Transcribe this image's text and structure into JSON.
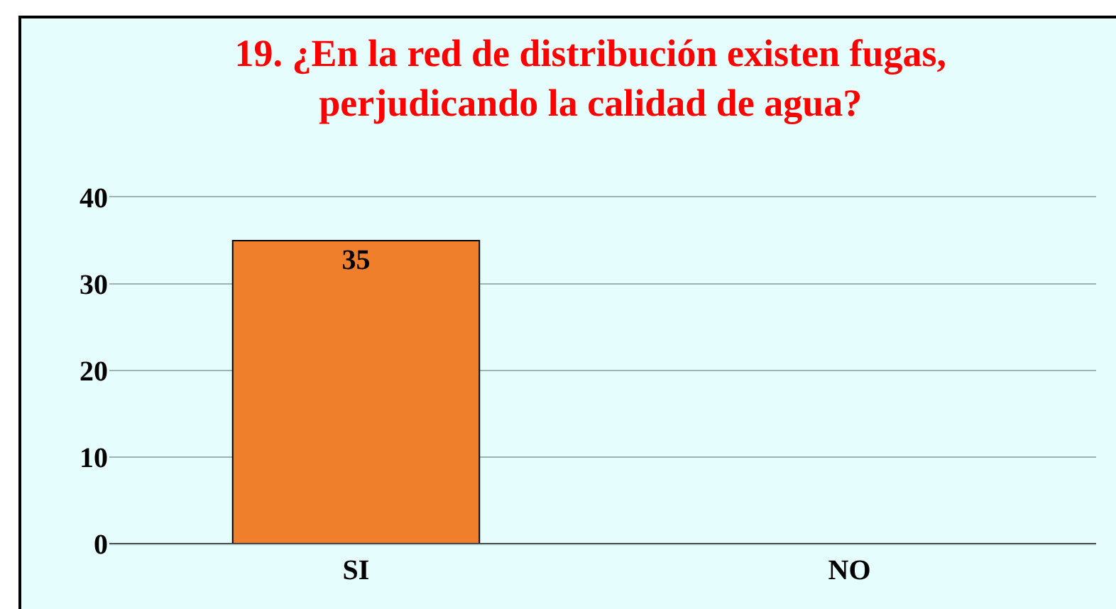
{
  "chart_data": {
    "type": "bar",
    "title": "19. ¿En la red de distribución existen fugas,\nperjudicando la calidad de agua?",
    "categories": [
      "SI",
      "NO"
    ],
    "values": [
      35,
      0
    ],
    "value_labels": [
      "35",
      null
    ],
    "color": "#f07f2c",
    "ylim": [
      0,
      40
    ],
    "yticks": [
      0,
      10,
      20,
      30,
      40
    ],
    "grid": "y",
    "legend": false
  }
}
